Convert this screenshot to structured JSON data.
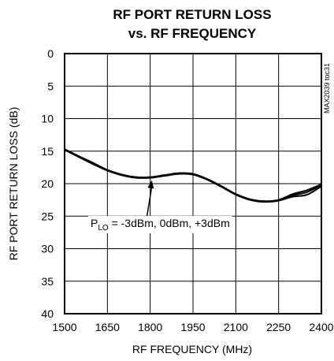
{
  "chart_data": {
    "type": "line",
    "title": [
      "RF PORT RETURN LOSS",
      "vs. RF FREQUENCY"
    ],
    "xlabel": "RF FREQUENCY (MHz)",
    "ylabel": "RF PORT RETURN LOSS (dB)",
    "xlim": [
      1500,
      2400
    ],
    "ylim": [
      0,
      40
    ],
    "y_inverted": true,
    "grid": true,
    "x_ticks": [
      "1500",
      "1650",
      "1800",
      "1950",
      "2100",
      "2250",
      "2400"
    ],
    "y_ticks": [
      "0",
      "5",
      "10",
      "15",
      "20",
      "25",
      "30",
      "35",
      "40"
    ],
    "x_tick_values": [
      1500,
      1650,
      1800,
      1950,
      2100,
      2250,
      2400
    ],
    "y_tick_values": [
      0,
      5,
      10,
      15,
      20,
      25,
      30,
      35,
      40
    ],
    "annotation": {
      "prefix": "P",
      "subscript": "LO",
      "text": " = -3dBm, 0dBm, +3dBm",
      "points_to": [
        1800,
        19.0
      ]
    },
    "side_note": "MAX2039 toc31",
    "series": [
      {
        "x": [
          1500,
          1550,
          1600,
          1650,
          1700,
          1750,
          1800,
          1850,
          1900,
          1950,
          2000,
          2050,
          2100,
          2150,
          2200,
          2250,
          2300,
          2350,
          2400
        ],
        "y": [
          14.7,
          15.8,
          16.9,
          17.9,
          18.6,
          19.0,
          19.0,
          18.7,
          18.4,
          18.5,
          19.3,
          20.4,
          21.6,
          22.4,
          22.7,
          22.6,
          22.0,
          21.7,
          20.4
        ]
      },
      {
        "x": [
          1500,
          1550,
          1600,
          1650,
          1700,
          1750,
          1800,
          1850,
          1900,
          1950,
          2000,
          2050,
          2100,
          2150,
          2200,
          2250,
          2300,
          2350,
          2400
        ],
        "y": [
          14.8,
          15.9,
          17.0,
          18.0,
          18.7,
          19.1,
          19.1,
          18.8,
          18.5,
          18.6,
          19.4,
          20.5,
          21.7,
          22.5,
          22.8,
          22.6,
          21.8,
          21.3,
          20.2
        ]
      },
      {
        "x": [
          1500,
          1550,
          1600,
          1650,
          1700,
          1750,
          1800,
          1850,
          1900,
          1950,
          2000,
          2050,
          2100,
          2150,
          2200,
          2250,
          2300,
          2350,
          2400
        ],
        "y": [
          14.7,
          15.8,
          16.8,
          17.9,
          18.6,
          19.0,
          19.0,
          18.7,
          18.4,
          18.5,
          19.3,
          20.4,
          21.6,
          22.4,
          22.7,
          22.5,
          21.6,
          21.0,
          20.1
        ]
      }
    ]
  }
}
